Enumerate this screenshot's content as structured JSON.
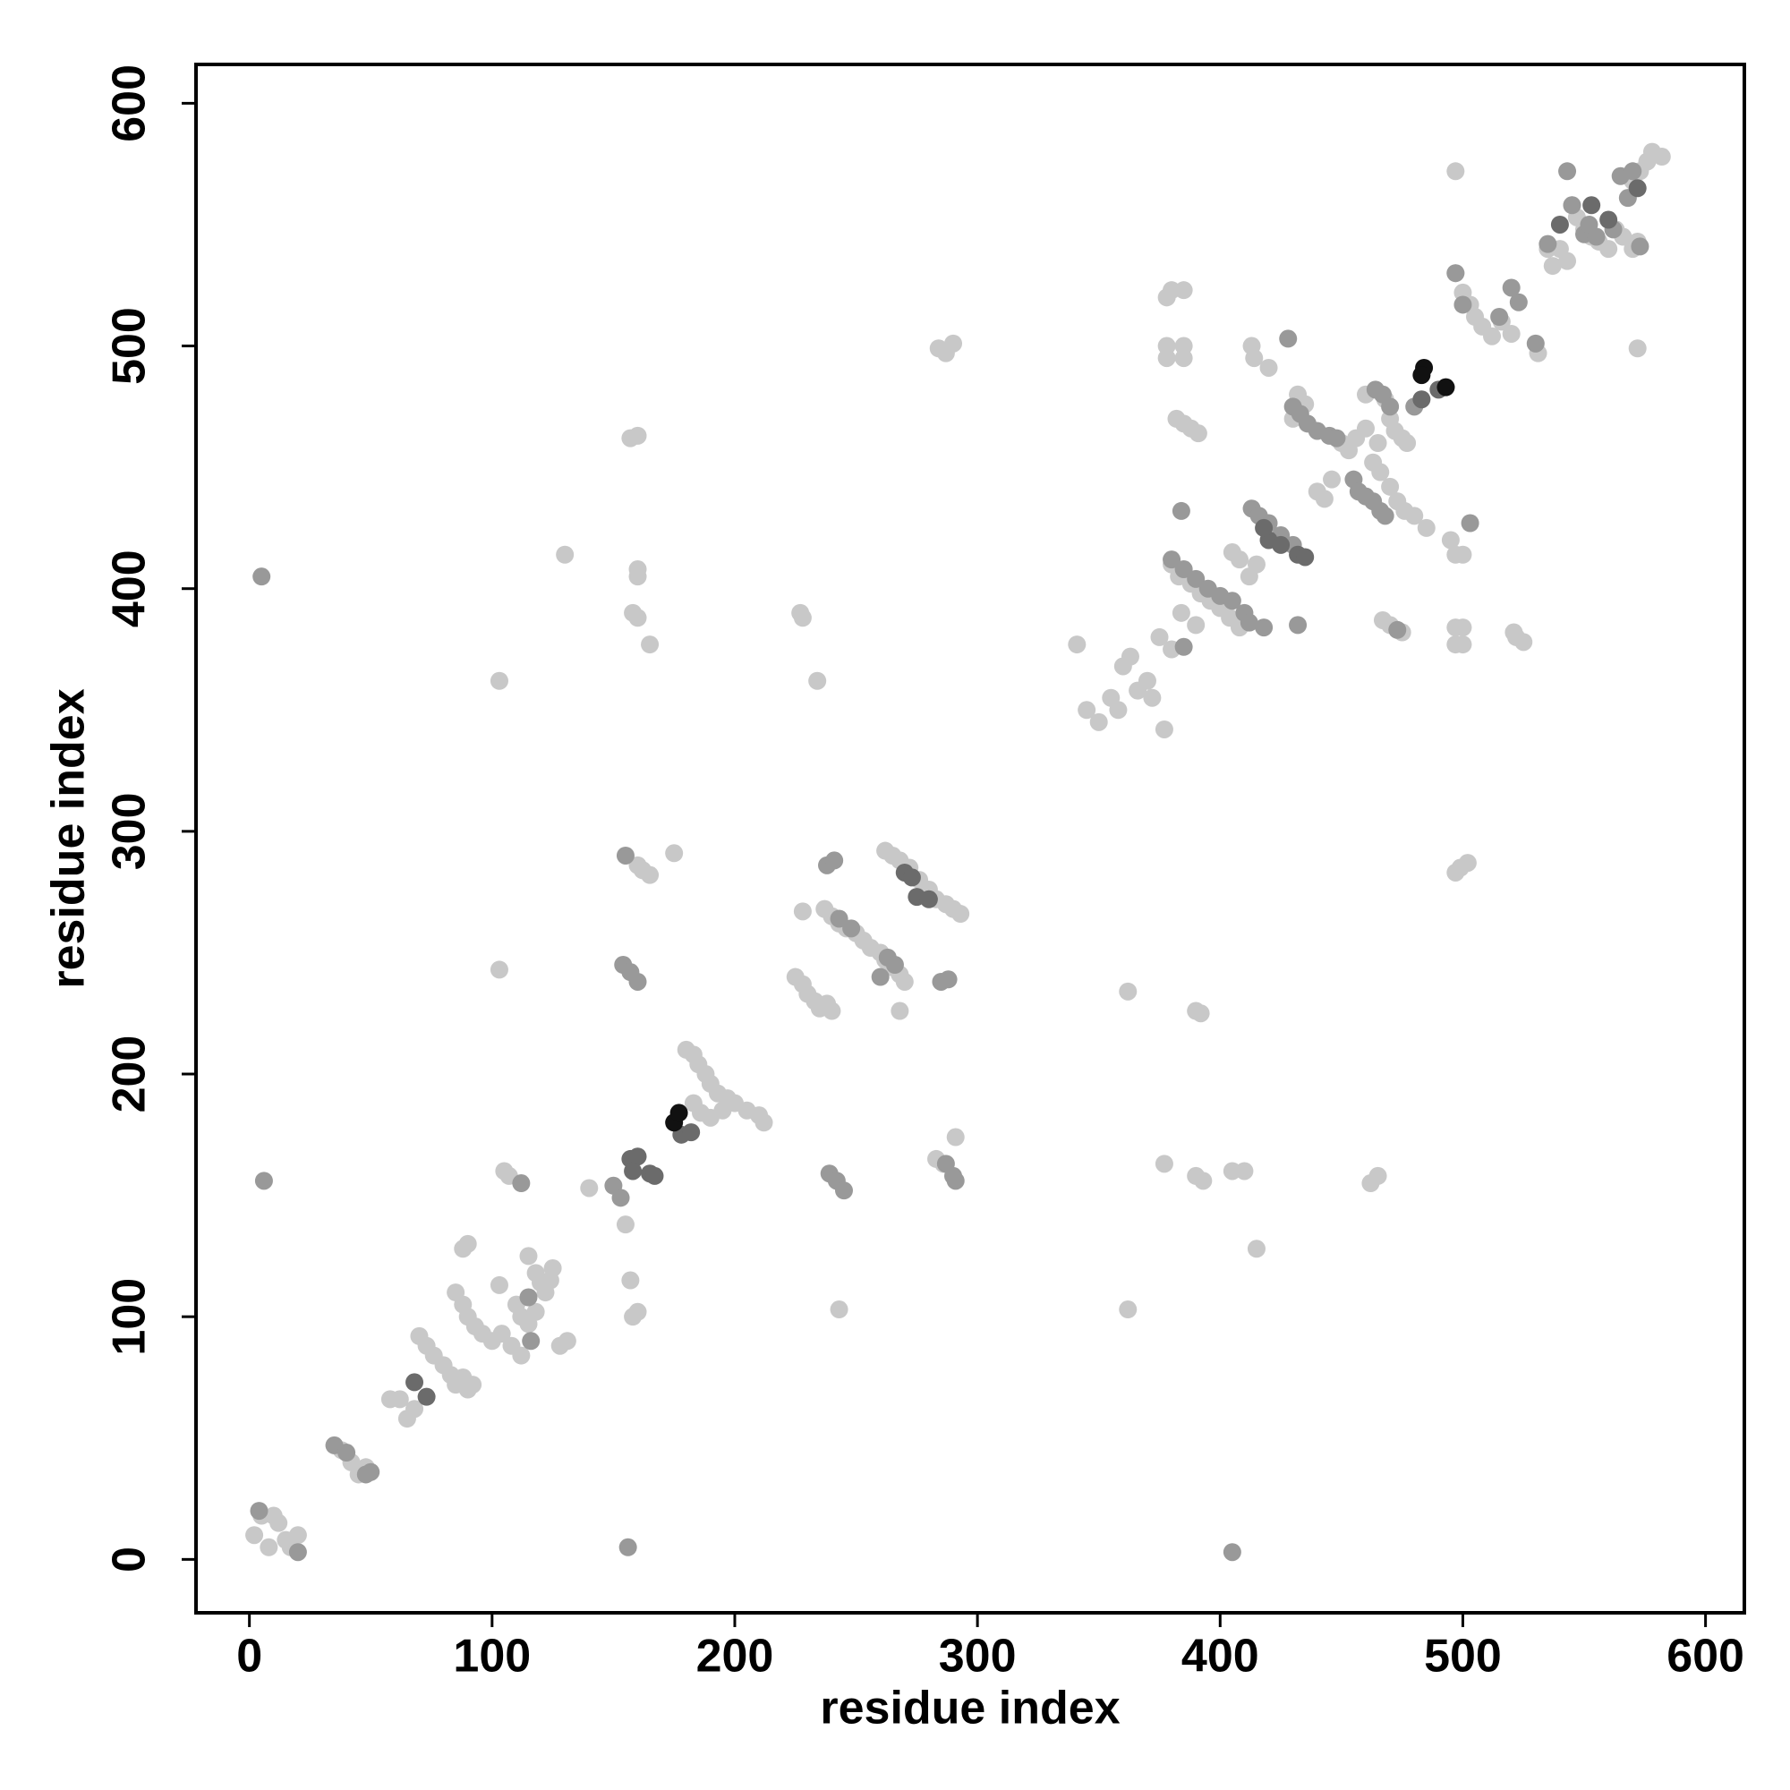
{
  "chart_data": {
    "type": "scatter",
    "xlabel": "residue index",
    "ylabel": "residue index",
    "xlim": [
      -22,
      616
    ],
    "ylim": [
      -22,
      616
    ],
    "xticks": [
      0,
      100,
      200,
      300,
      400,
      500,
      600
    ],
    "yticks": [
      0,
      100,
      200,
      300,
      400,
      500,
      600
    ],
    "series": [
      {
        "color": "#c8c8c8",
        "x": [
          2,
          5,
          10,
          12,
          8,
          15,
          20,
          17,
          38,
          42,
          45,
          48,
          58,
          62,
          65,
          68,
          70,
          73,
          76,
          80,
          83,
          85,
          88,
          90,
          92,
          85,
          88,
          90,
          93,
          96,
          100,
          104,
          108,
          112,
          88,
          90,
          103,
          105,
          107,
          115,
          118,
          120,
          122,
          124,
          125,
          128,
          131,
          110,
          112,
          115,
          118,
          130,
          103,
          103,
          140,
          155,
          157,
          158,
          160,
          157,
          160,
          160,
          160,
          158,
          160,
          165,
          160,
          162,
          165,
          175,
          180,
          183,
          185,
          188,
          190,
          193,
          197,
          200,
          205,
          210,
          212,
          183,
          186,
          190,
          195,
          227,
          228,
          234,
          228,
          225,
          228,
          230,
          233,
          235,
          238,
          240,
          237,
          240,
          243,
          246,
          250,
          253,
          256,
          260,
          262,
          265,
          268,
          270,
          262,
          265,
          268,
          272,
          276,
          280,
          283,
          287,
          290,
          293,
          268,
          243,
          287,
          284,
          290,
          283,
          286,
          291,
          341,
          345,
          350,
          355,
          358,
          360,
          363,
          366,
          370,
          372,
          362,
          362,
          377,
          378,
          378,
          385,
          385,
          378,
          380,
          385,
          382,
          385,
          388,
          391,
          375,
          380,
          384,
          390,
          380,
          383,
          388,
          392,
          396,
          400,
          404,
          408,
          390,
          392,
          377,
          390,
          393,
          405,
          410,
          415,
          405,
          408,
          412,
          415,
          413,
          414,
          420,
          432,
          435,
          430,
          440,
          443,
          446,
          450,
          453,
          456,
          460,
          465,
          462,
          465,
          460,
          468,
          470,
          472,
          475,
          463,
          466,
          470,
          473,
          476,
          467,
          470,
          475,
          480,
          485,
          477,
          497,
          497,
          497,
          500,
          497,
          500,
          497,
          500,
          495,
          497,
          499,
          502,
          500,
          503,
          505,
          508,
          512,
          516,
          520,
          522,
          525,
          521,
          531,
          535,
          537,
          540,
          543,
          545,
          547,
          550,
          553,
          556,
          560,
          563,
          566,
          570,
          573,
          576,
          578,
          582,
          572,
          572,
          570
        ],
        "values": [
          10,
          18,
          18,
          15,
          5,
          8,
          10,
          5,
          45,
          40,
          35,
          38,
          66,
          66,
          58,
          62,
          92,
          88,
          84,
          80,
          76,
          72,
          75,
          70,
          72,
          110,
          105,
          100,
          96,
          93,
          90,
          93,
          88,
          84,
          128,
          130,
          113,
          160,
          158,
          125,
          118,
          114,
          110,
          115,
          120,
          88,
          90,
          105,
          100,
          97,
          102,
          414,
          362,
          243,
          153,
          138,
          115,
          100,
          102,
          462,
          463,
          408,
          405,
          390,
          388,
          377,
          286,
          284,
          282,
          291,
          210,
          208,
          204,
          200,
          196,
          192,
          190,
          188,
          185,
          183,
          180,
          188,
          184,
          182,
          185,
          390,
          388,
          362,
          267,
          240,
          237,
          233,
          230,
          227,
          229,
          226,
          268,
          265,
          262,
          260,
          258,
          255,
          252,
          250,
          247,
          244,
          241,
          238,
          292,
          290,
          288,
          285,
          280,
          276,
          272,
          270,
          268,
          266,
          226,
          103,
          497,
          499,
          501,
          165,
          163,
          174,
          377,
          350,
          345,
          355,
          350,
          368,
          372,
          358,
          362,
          355,
          234,
          103,
          342,
          500,
          495,
          500,
          495,
          520,
          523,
          523,
          470,
          468,
          466,
          464,
          380,
          375,
          390,
          385,
          410,
          405,
          402,
          398,
          395,
          392,
          388,
          384,
          226,
          225,
          163,
          158,
          156,
          160,
          160,
          128,
          415,
          412,
          405,
          410,
          500,
          495,
          491,
          480,
          476,
          470,
          440,
          437,
          445,
          460,
          457,
          462,
          466,
          460,
          155,
          158,
          480,
          478,
          470,
          465,
          462,
          452,
          448,
          442,
          436,
          432,
          387,
          385,
          382,
          430,
          425,
          460,
          572,
          530,
          384,
          384,
          377,
          377,
          414,
          414,
          420,
          283,
          285,
          287,
          522,
          517,
          512,
          508,
          504,
          510,
          505,
          380,
          378,
          382,
          497,
          540,
          533,
          540,
          535,
          558,
          553,
          548,
          545,
          543,
          540,
          548,
          545,
          568,
          572,
          576,
          580,
          578,
          543,
          499,
          540
        ]
      },
      {
        "color": "#999999",
        "x": [
          5,
          6,
          4,
          20,
          35,
          40,
          48,
          50,
          112,
          115,
          116,
          150,
          153,
          154,
          157,
          160,
          155,
          156,
          239,
          242,
          245,
          238,
          241,
          243,
          248,
          260,
          263,
          266,
          285,
          288,
          287,
          290,
          291,
          384,
          385,
          380,
          385,
          390,
          395,
          400,
          405,
          410,
          412,
          418,
          405,
          413,
          416,
          420,
          425,
          430,
          428,
          432,
          430,
          433,
          436,
          440,
          445,
          448,
          455,
          457,
          460,
          463,
          466,
          468,
          464,
          467,
          470,
          480,
          473,
          503,
          497,
          500,
          515,
          520,
          523,
          530,
          543,
          545,
          550,
          555,
          565,
          570,
          573,
          568,
          562,
          552,
          535
        ],
        "values": [
          405,
          156,
          20,
          3,
          47,
          44,
          35,
          36,
          155,
          108,
          90,
          154,
          149,
          245,
          242,
          238,
          290,
          5,
          159,
          156,
          152,
          286,
          288,
          264,
          260,
          240,
          248,
          245,
          238,
          239,
          163,
          158,
          156,
          432,
          376,
          412,
          408,
          404,
          400,
          397,
          395,
          390,
          386,
          384,
          3,
          433,
          430,
          427,
          422,
          418,
          503,
          385,
          475,
          472,
          468,
          465,
          463,
          462,
          445,
          440,
          438,
          436,
          432,
          430,
          482,
          480,
          475,
          475,
          383,
          427,
          530,
          517,
          512,
          524,
          518,
          501,
          572,
          558,
          546,
          545,
          570,
          572,
          541,
          561,
          548,
          550,
          542
        ]
      },
      {
        "color": "#6b6b6b",
        "x": [
          68,
          73,
          157,
          160,
          158,
          165,
          167,
          178,
          182,
          270,
          273,
          275,
          280,
          420,
          425,
          432,
          435,
          418,
          483,
          490,
          540,
          553,
          560,
          572
        ],
        "values": [
          73,
          67,
          165,
          166,
          160,
          159,
          158,
          175,
          176,
          283,
          281,
          273,
          272,
          420,
          418,
          414,
          413,
          425,
          478,
          482,
          550,
          558,
          552,
          565
        ]
      },
      {
        "color": "#111111",
        "x": [
          175,
          177,
          484,
          483,
          493
        ],
        "values": [
          180,
          184,
          491,
          488,
          483
        ]
      }
    ]
  }
}
